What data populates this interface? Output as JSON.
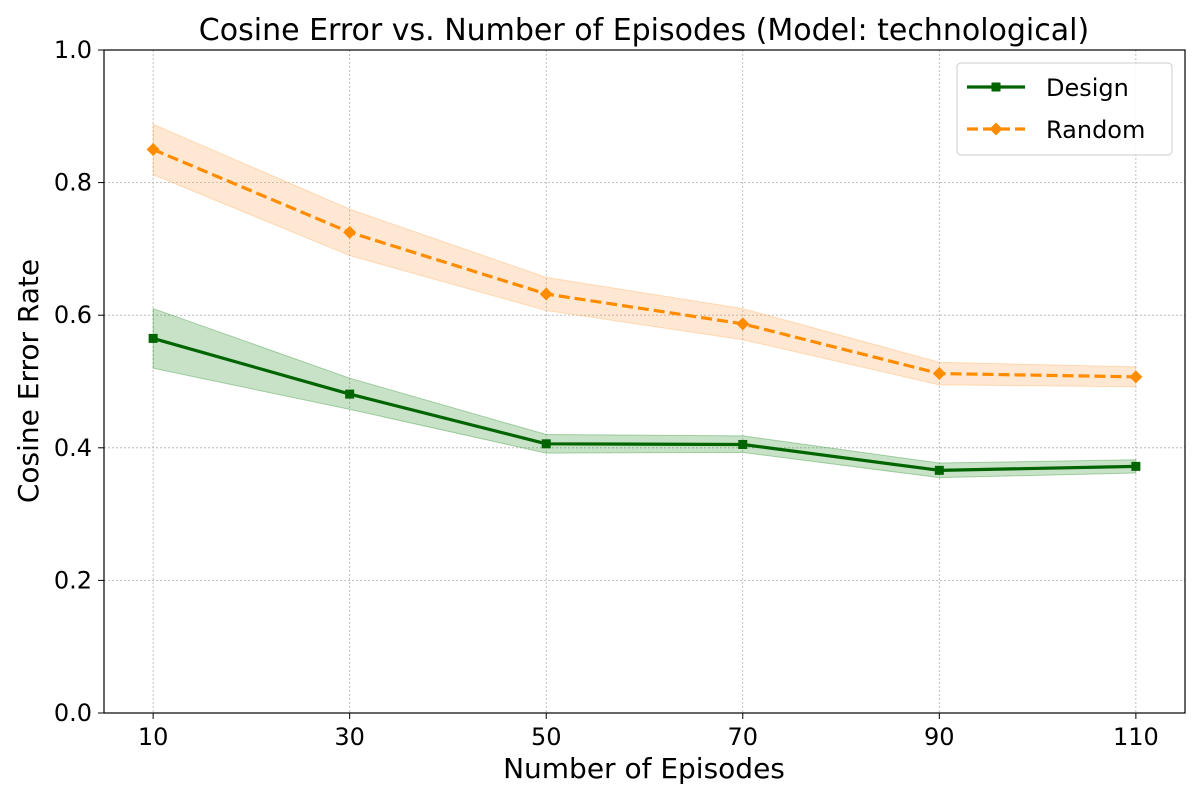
{
  "chart_data": {
    "type": "line",
    "title": "Cosine Error vs. Number of Episodes (Model: technological)",
    "xlabel": "Number of Episodes",
    "ylabel": "Cosine Error Rate",
    "x": [
      10,
      30,
      50,
      70,
      90,
      110
    ],
    "xticks": [
      "10",
      "30",
      "50",
      "70",
      "90",
      "110"
    ],
    "yticks": [
      "0.0",
      "0.2",
      "0.4",
      "0.6",
      "0.8",
      "1.0"
    ],
    "ylim": [
      0.0,
      1.0
    ],
    "grid": true,
    "legend_position": "top-right",
    "series": [
      {
        "name": "Design",
        "values": [
          0.565,
          0.481,
          0.406,
          0.405,
          0.366,
          0.372
        ],
        "lower": [
          0.52,
          0.458,
          0.392,
          0.393,
          0.355,
          0.362
        ],
        "upper": [
          0.61,
          0.505,
          0.42,
          0.418,
          0.377,
          0.382
        ],
        "color": "#006400",
        "band_color": "#228b22",
        "marker": "square",
        "linestyle": "solid"
      },
      {
        "name": "Random",
        "values": [
          0.85,
          0.725,
          0.632,
          0.587,
          0.512,
          0.507
        ],
        "lower": [
          0.812,
          0.69,
          0.607,
          0.563,
          0.495,
          0.492
        ],
        "upper": [
          0.888,
          0.76,
          0.657,
          0.61,
          0.529,
          0.522
        ],
        "color": "#ff8c00",
        "band_color": "#ffa54f",
        "marker": "diamond",
        "linestyle": "dashed"
      }
    ]
  }
}
